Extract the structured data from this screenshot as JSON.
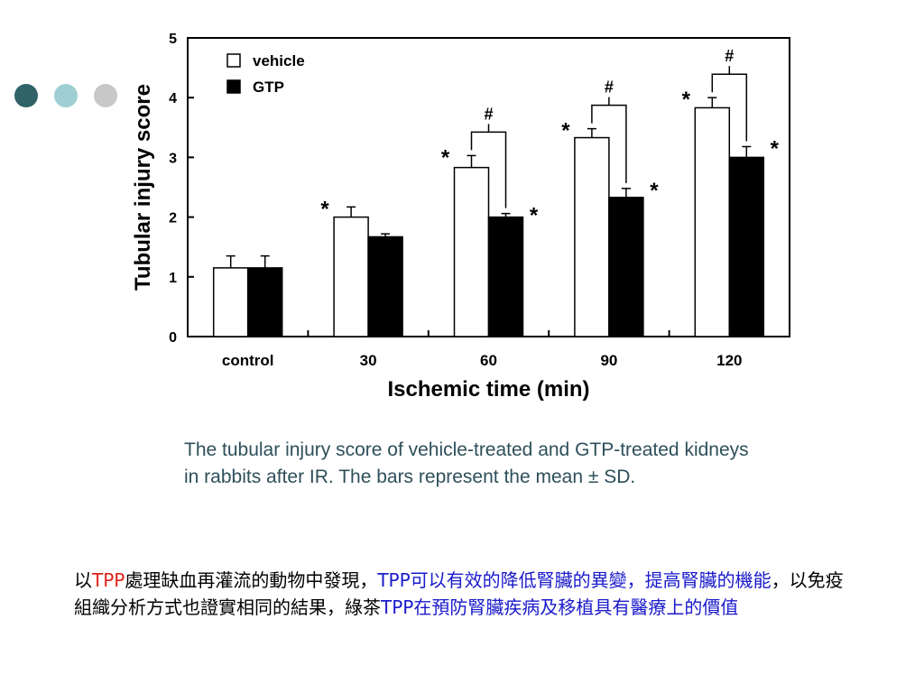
{
  "decor": {
    "dots": [
      {
        "name": "dark-teal-dot",
        "color": "#2f6368"
      },
      {
        "name": "light-teal-dot",
        "color": "#9fcfd2"
      },
      {
        "name": "gray-dot",
        "color": "#c8c8c8"
      }
    ]
  },
  "chart_data": {
    "type": "bar",
    "title": "",
    "xlabel": "Ischemic time (min)",
    "ylabel": "Tubular injury score",
    "ylim": [
      0,
      5
    ],
    "yticks": [
      "0",
      "1",
      "2",
      "3",
      "4",
      "5"
    ],
    "categories": [
      "control",
      "30",
      "60",
      "90",
      "120"
    ],
    "legend_position": "top-left",
    "grid": false,
    "series": [
      {
        "name": "vehicle",
        "color": "#ffffff",
        "values": [
          1.15,
          2.0,
          2.83,
          3.33,
          3.83
        ],
        "errors": [
          0.2,
          0.17,
          0.2,
          0.15,
          0.17
        ],
        "marks": [
          "",
          "*",
          "*",
          "*",
          "*"
        ]
      },
      {
        "name": "GTP",
        "color": "#000000",
        "values": [
          1.15,
          1.67,
          2.0,
          2.33,
          3.0
        ],
        "errors": [
          0.2,
          0.05,
          0.06,
          0.15,
          0.18
        ],
        "marks": [
          "",
          "",
          "*",
          "*",
          "*"
        ]
      }
    ],
    "comparisons": [
      {
        "category": "60",
        "mark": "#"
      },
      {
        "category": "90",
        "mark": "#"
      },
      {
        "category": "120",
        "mark": "#"
      }
    ]
  },
  "caption": "The tubular injury score of vehicle-treated and GTP-treated  kidneys in rabbits after IR. The bars represent the mean ± SD.",
  "note": {
    "p1": "以",
    "p2": "TPP",
    "p3": "處理缺血再灌流的動物中發現，",
    "p4": "TPP可以有效的降低腎臟的異變，提高腎臟的機能",
    "p5": "，以免疫組織分析方式也證實相同的結果，綠茶",
    "p6": "TPP在預防腎臟疾病及移植具有醫療上的價值"
  }
}
